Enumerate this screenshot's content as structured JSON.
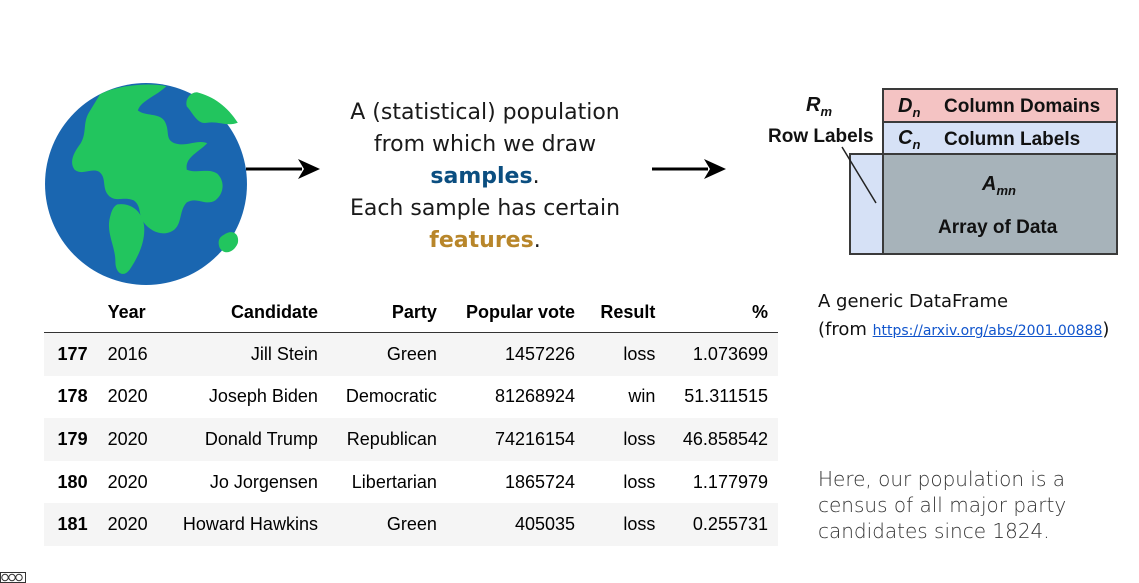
{
  "population": {
    "line1": "A (statistical) population",
    "line2": "from which we draw",
    "samples_word": "samples",
    "period1": ".",
    "line4": "Each sample has certain",
    "features_word": "features",
    "period2": "."
  },
  "dataframe_diagram": {
    "rm_symbol": "R",
    "rm_sub": "m",
    "row_labels": "Row Labels",
    "dn_symbol": "D",
    "dn_sub": "n",
    "column_domains": "Column Domains",
    "cn_symbol": "C",
    "cn_sub": "n",
    "column_labels": "Column Labels",
    "amn_symbol": "A",
    "amn_sub": "mn",
    "array_of_data": "Array of Data",
    "caption_line1": "A generic DataFrame",
    "caption_from": "(from ",
    "caption_link": "https://arxiv.org/abs/2001.00888",
    "caption_close": ")"
  },
  "table": {
    "headers": [
      "",
      "Year",
      "Candidate",
      "Party",
      "Popular vote",
      "Result",
      "%"
    ],
    "rows": [
      [
        "177",
        "2016",
        "Jill Stein",
        "Green",
        "1457226",
        "loss",
        "1.073699"
      ],
      [
        "178",
        "2020",
        "Joseph Biden",
        "Democratic",
        "81268924",
        "win",
        "51.311515"
      ],
      [
        "179",
        "2020",
        "Donald Trump",
        "Republican",
        "74216154",
        "loss",
        "46.858542"
      ],
      [
        "180",
        "2020",
        "Jo Jorgensen",
        "Libertarian",
        "1865724",
        "loss",
        "1.177979"
      ],
      [
        "181",
        "2020",
        "Howard Hawkins",
        "Green",
        "405035",
        "loss",
        "0.255731"
      ]
    ]
  },
  "census_note": "Here, our population is a census of all major party candidates since 1824.",
  "colors": {
    "samples": "#0b4e80",
    "features": "#b8862a",
    "domains_fill": "#f4c3c3",
    "labels_fill": "#d6e1f6",
    "array_fill": "#a7b3ba",
    "ocean": "#1a66b0",
    "land": "#22c55e"
  },
  "icons": {
    "globe": "globe-icon",
    "arrow": "right-arrow-icon",
    "license": "cc-license-icon"
  }
}
